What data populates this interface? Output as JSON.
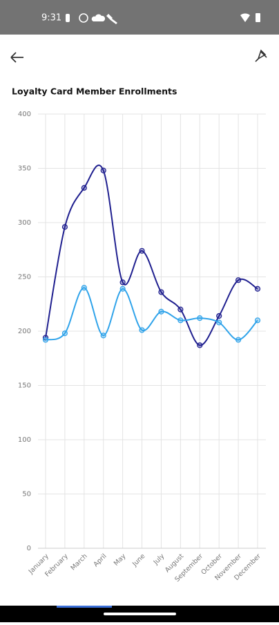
{
  "status_bar": {
    "time": "9:31"
  },
  "chart_data": {
    "type": "line",
    "title": "Loyalty Card Member Enrollments",
    "categories": [
      "January",
      "February",
      "March",
      "April",
      "May",
      "June",
      "July",
      "August",
      "September",
      "October",
      "November",
      "December"
    ],
    "series": [
      {
        "color": "#1f1f8f",
        "values": [
          194,
          296,
          332,
          348,
          245,
          274,
          236,
          220,
          187,
          214,
          247,
          239
        ]
      },
      {
        "color": "#2fa3ea",
        "values": [
          192,
          198,
          240,
          196,
          239,
          201,
          218,
          210,
          212,
          208,
          192,
          210
        ]
      }
    ],
    "ylim": [
      0,
      400
    ],
    "yticks": [
      0,
      50,
      100,
      150,
      200,
      250,
      300,
      350,
      400
    ],
    "grid": true,
    "smooth": true
  }
}
